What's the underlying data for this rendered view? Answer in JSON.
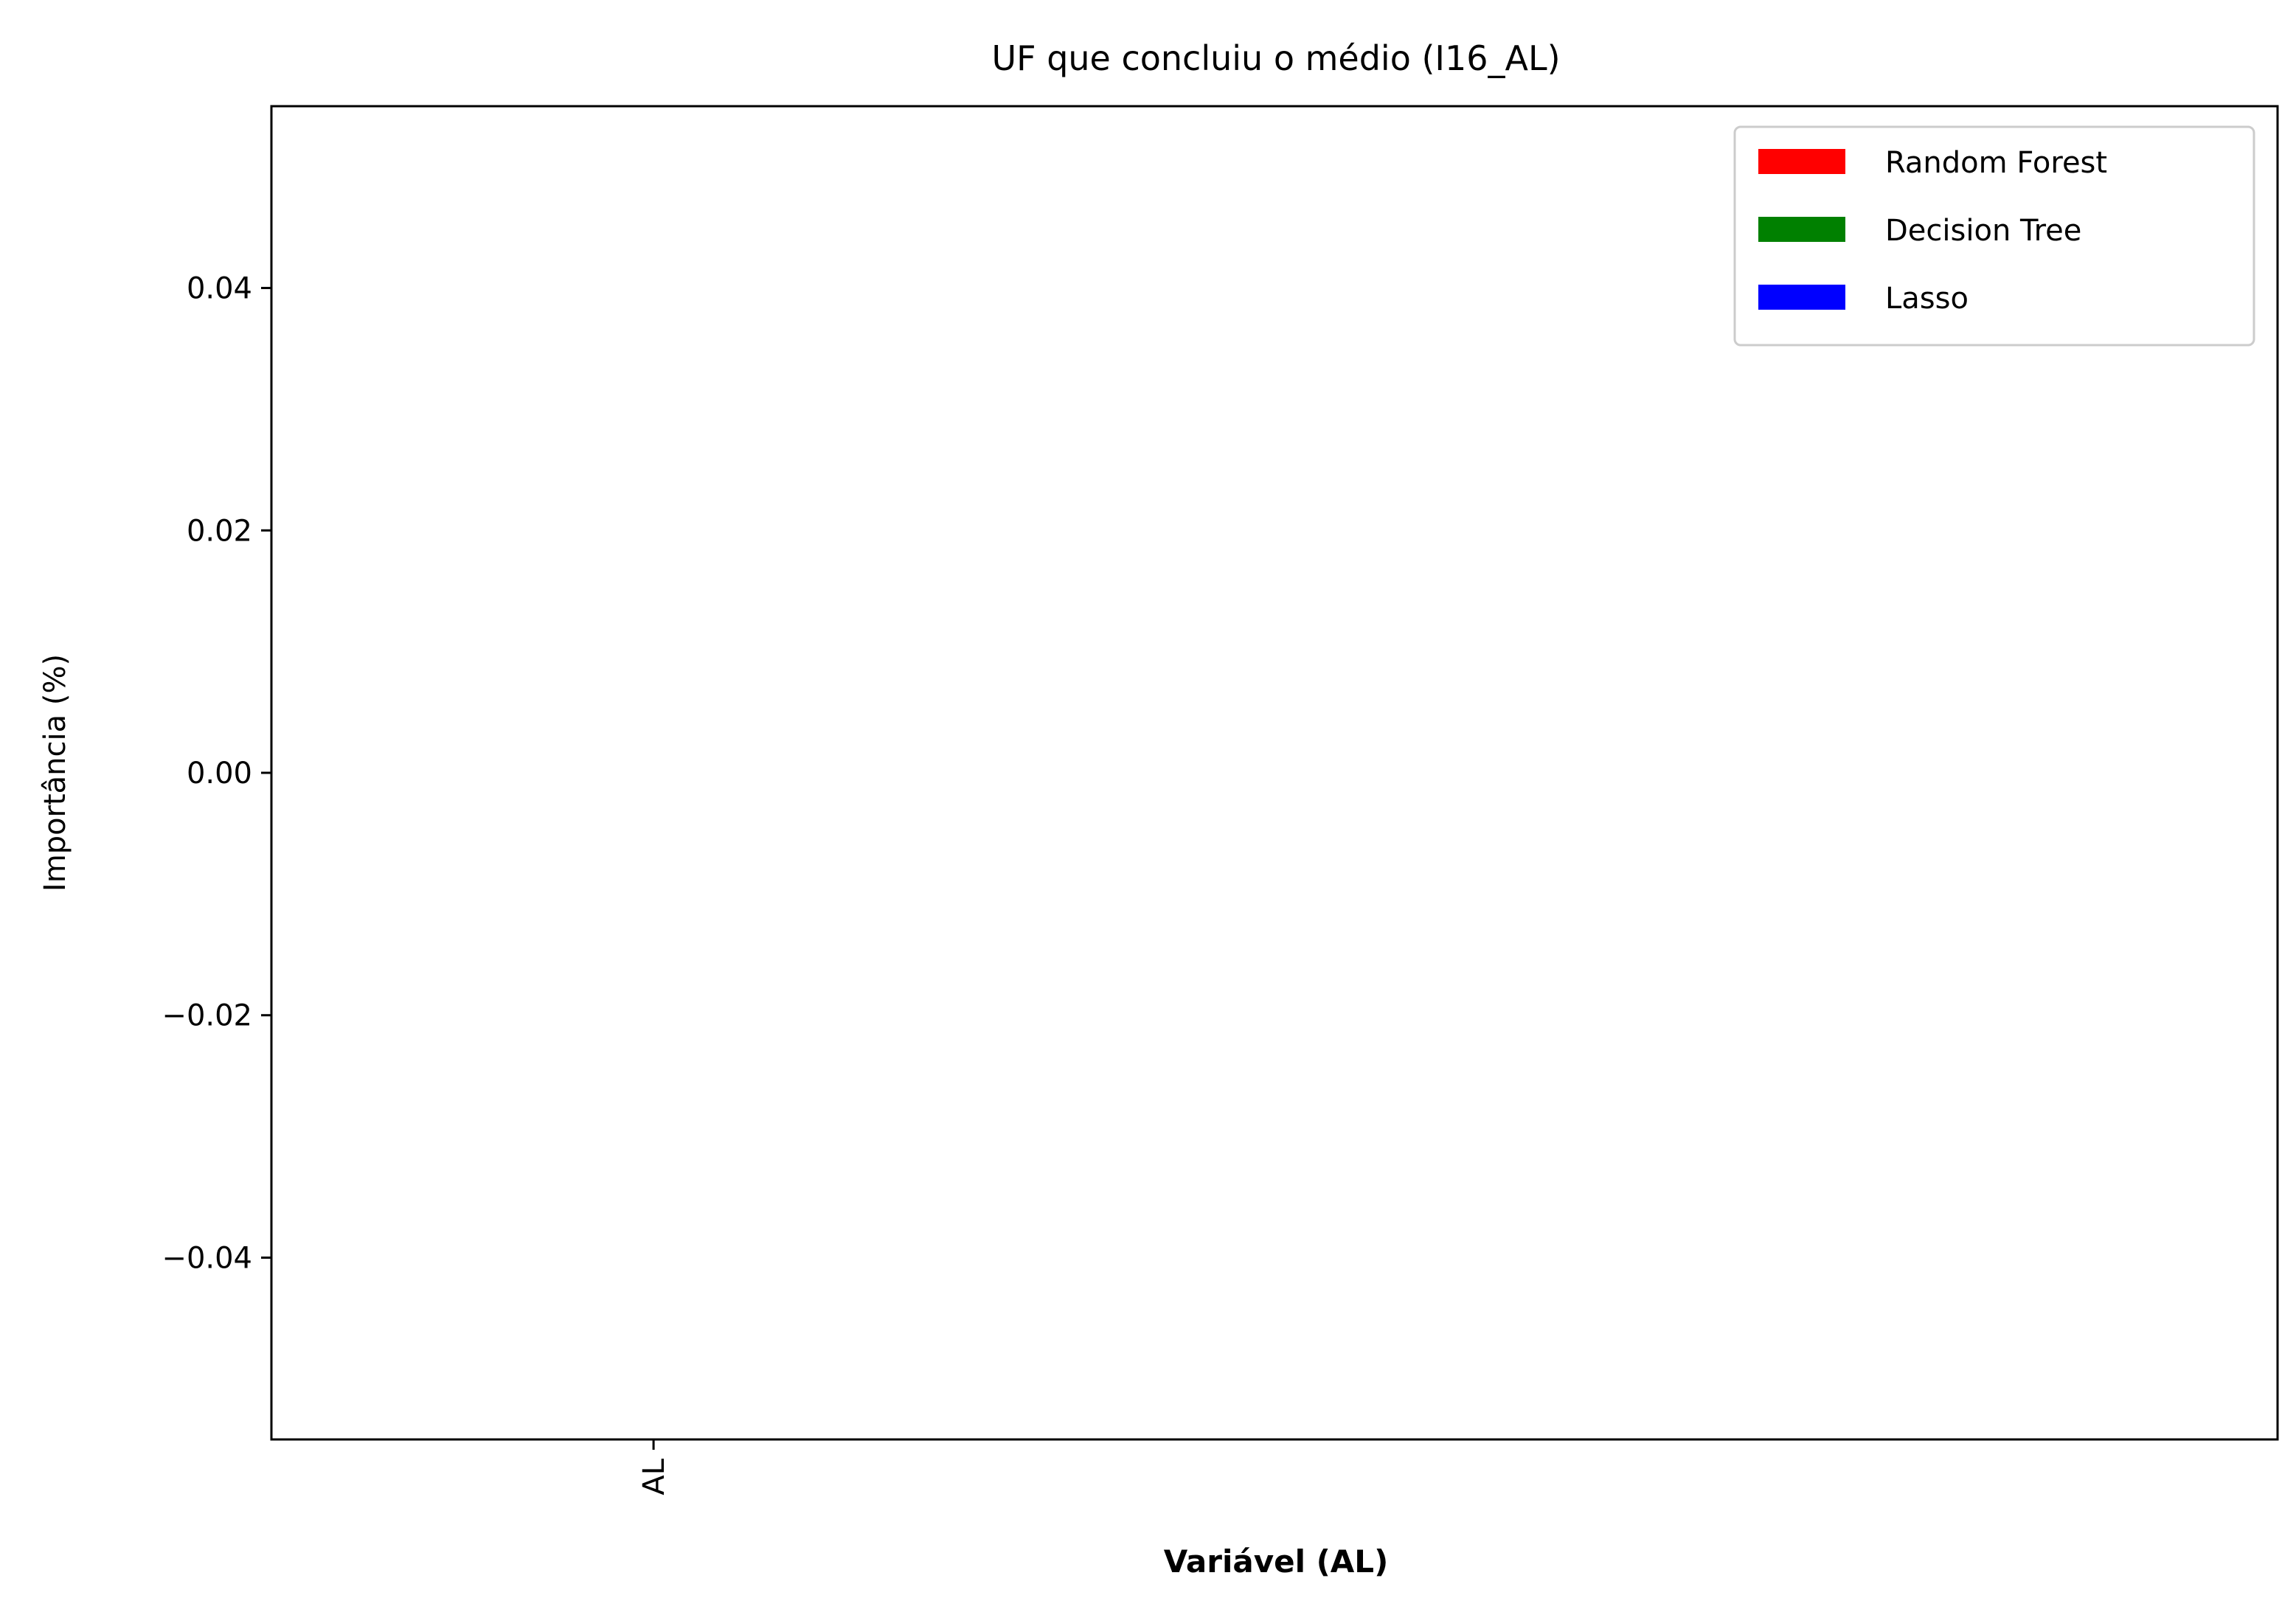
{
  "chart_data": {
    "type": "bar",
    "title": "UF que concluiu o médio (I16_AL)",
    "xlabel": "Variável (AL)",
    "ylabel": "Importância (%)",
    "categories": [
      "AL"
    ],
    "series": [
      {
        "name": "Random Forest",
        "color": "#ff0000",
        "values": [
          0
        ]
      },
      {
        "name": "Decision Tree",
        "color": "#008000",
        "values": [
          0
        ]
      },
      {
        "name": "Lasso",
        "color": "#0000ff",
        "values": [
          0
        ]
      }
    ],
    "ylim": [
      -0.055,
      0.055
    ],
    "yticks": [
      -0.04,
      -0.02,
      0.0,
      0.02,
      0.04
    ],
    "ytick_labels": [
      "−0.04",
      "−0.02",
      "0.00",
      "0.02",
      "0.04"
    ],
    "grid": false,
    "legend_position": "top-right"
  }
}
